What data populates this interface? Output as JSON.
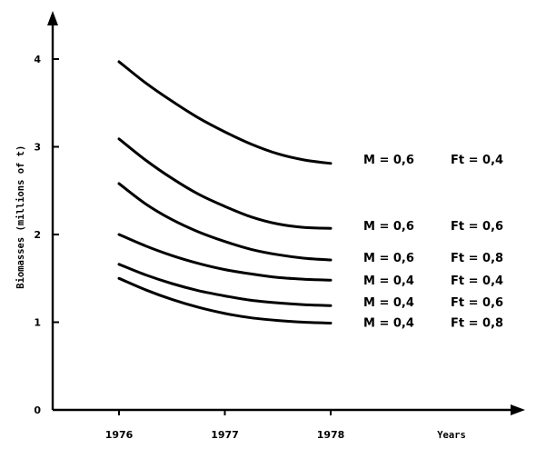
{
  "chart_data": {
    "type": "line",
    "title": "",
    "xlabel": "Years",
    "ylabel": "Biomasses (millions of t)",
    "xlim": [
      1975.35,
      1979.85
    ],
    "ylim": [
      0,
      4.4
    ],
    "x_ticks": [
      1976,
      1977,
      1978
    ],
    "y_ticks": [
      0,
      1,
      2,
      3,
      4
    ],
    "grid": false,
    "legend": "inline-right",
    "series": [
      {
        "m_label": "M = 0,6",
        "ft_label": "Ft = 0,4",
        "x": [
          1976,
          1976.25,
          1976.5,
          1976.75,
          1977,
          1977.25,
          1977.5,
          1977.75,
          1978
        ],
        "y": [
          3.97,
          3.73,
          3.52,
          3.33,
          3.17,
          3.03,
          2.92,
          2.85,
          2.81
        ]
      },
      {
        "m_label": "M = 0,6",
        "ft_label": "Ft = 0,6",
        "x": [
          1976,
          1976.25,
          1976.5,
          1976.75,
          1977,
          1977.25,
          1977.5,
          1977.75,
          1978
        ],
        "y": [
          3.09,
          2.85,
          2.64,
          2.46,
          2.32,
          2.2,
          2.12,
          2.08,
          2.07
        ]
      },
      {
        "m_label": "M = 0,6",
        "ft_label": "Ft = 0,8",
        "x": [
          1976,
          1976.25,
          1976.5,
          1976.75,
          1977,
          1977.25,
          1977.5,
          1977.75,
          1978
        ],
        "y": [
          2.58,
          2.35,
          2.17,
          2.03,
          1.92,
          1.83,
          1.77,
          1.73,
          1.71
        ]
      },
      {
        "m_label": "M = 0,4",
        "ft_label": "Ft = 0,4",
        "x": [
          1976,
          1976.25,
          1976.5,
          1976.75,
          1977,
          1977.25,
          1977.5,
          1977.75,
          1978
        ],
        "y": [
          2.0,
          1.87,
          1.76,
          1.67,
          1.6,
          1.55,
          1.51,
          1.49,
          1.48
        ]
      },
      {
        "m_label": "M = 0,4",
        "ft_label": "Ft = 0,6",
        "x": [
          1976,
          1976.25,
          1976.5,
          1976.75,
          1977,
          1977.25,
          1977.5,
          1977.75,
          1978
        ],
        "y": [
          1.66,
          1.54,
          1.44,
          1.36,
          1.3,
          1.25,
          1.22,
          1.2,
          1.19
        ]
      },
      {
        "m_label": "M = 0,4",
        "ft_label": "Ft = 0,8",
        "x": [
          1976,
          1976.25,
          1976.5,
          1976.75,
          1977,
          1977.25,
          1977.5,
          1977.75,
          1978
        ],
        "y": [
          1.5,
          1.37,
          1.26,
          1.17,
          1.1,
          1.05,
          1.02,
          1.0,
          0.99
        ]
      }
    ]
  }
}
